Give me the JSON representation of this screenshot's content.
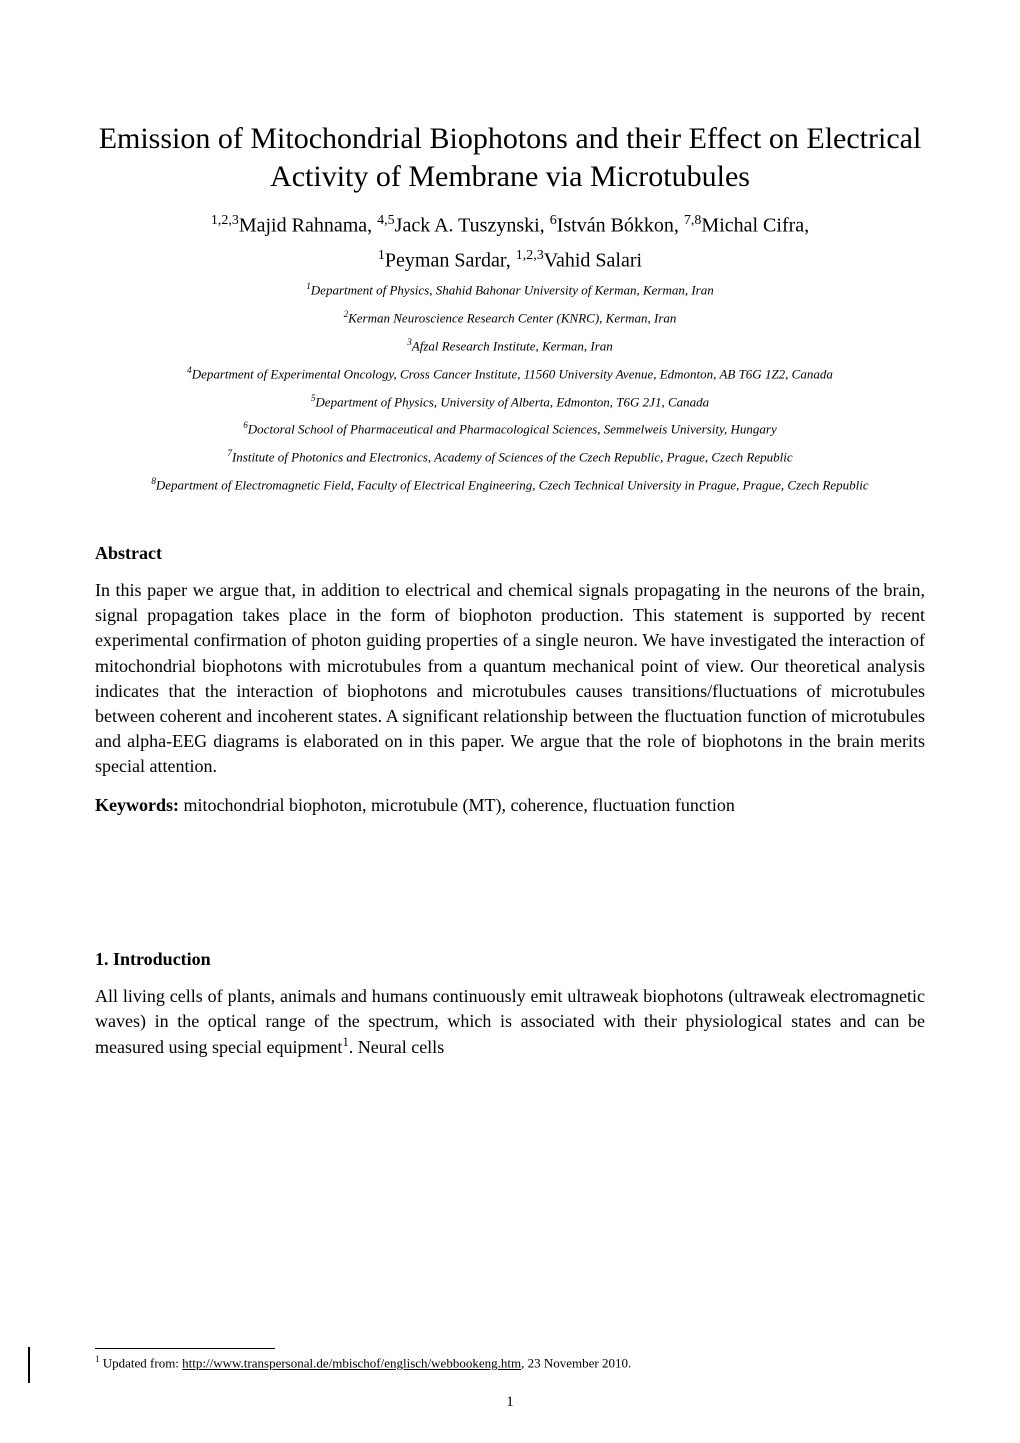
{
  "title": "Emission of Mitochondrial Biophotons and their Effect on Electrical Activity of Membrane via Microtubules",
  "authors_line1_html": "<sup>1,2,3</sup>Majid Rahnama, <sup>4,5</sup>Jack A. Tuszynski, <sup>6</sup>István Bókkon, <sup>7,8</sup>Michal Cifra,",
  "authors_line2_html": "<sup>1</sup>Peyman Sardar, <sup>1,2,3</sup>Vahid Salari",
  "affiliations": [
    {
      "sup": "1",
      "text": "Department of Physics, Shahid Bahonar University of Kerman, Kerman, Iran"
    },
    {
      "sup": "2",
      "text": "Kerman Neuroscience Research Center (KNRC), Kerman, Iran"
    },
    {
      "sup": "3",
      "text": "Afzal Research Institute, Kerman, Iran"
    },
    {
      "sup": "4",
      "text": "Department of Experimental Oncology, Cross Cancer Institute, 11560 University Avenue, Edmonton, AB T6G 1Z2, Canada"
    },
    {
      "sup": "5",
      "text": "Department of Physics, University of Alberta, Edmonton, T6G 2J1, Canada"
    },
    {
      "sup": "6",
      "text": "Doctoral School of Pharmaceutical and Pharmacological Sciences, Semmelweis University, Hungary"
    },
    {
      "sup": "7",
      "text": "Institute of Photonics and Electronics, Academy of Sciences of the Czech Republic, Prague, Czech Republic"
    },
    {
      "sup": "8",
      "text": "Department of Electromagnetic Field, Faculty of Electrical Engineering, Czech Technical University in Prague, Prague, Czech Republic"
    }
  ],
  "abstract_heading": "Abstract",
  "abstract_text": "In this paper we argue that, in addition to electrical and chemical signals propagating in the neurons of the brain, signal propagation takes place in the form of biophoton production. This statement is supported by recent experimental confirmation of photon guiding properties of a single neuron. We have investigated the interaction of mitochondrial biophotons with microtubules from a quantum mechanical point of view. Our theoretical analysis indicates that the interaction of biophotons and microtubules causes transitions/fluctuations of microtubules between coherent and incoherent states. A significant relationship between the fluctuation function of microtubules and alpha-EEG diagrams is elaborated on in this paper. We argue that the role of biophotons in the brain merits special attention.",
  "keywords_label": "Keywords:",
  "keywords_text": " mitochondrial biophoton, microtubule (MT), coherence, fluctuation function",
  "intro_heading": "1. Introduction",
  "intro_text_html": "All living cells of plants, animals and humans continuously emit ultraweak biophotons (ultraweak electromagnetic waves) in the optical range of the spectrum, which is associated with their physiological states and can be measured using special equipment<sup>1</sup>. Neural cells",
  "footnote_sup": "1",
  "footnote_prefix": " Updated from: ",
  "footnote_link": "http://www.transpersonal.de/mbischof/englisch/webbookeng.htm",
  "footnote_suffix": ", 23 November 2010.",
  "page_number": "1",
  "colors": {
    "background": "#ffffff",
    "text": "#000000"
  },
  "typography": {
    "title_fontsize": 30,
    "authors_fontsize": 20,
    "affiliation_fontsize": 13,
    "heading_fontsize": 18,
    "body_fontsize": 18,
    "footnote_fontsize": 13,
    "page_number_fontsize": 15,
    "font_family": "Times New Roman"
  }
}
